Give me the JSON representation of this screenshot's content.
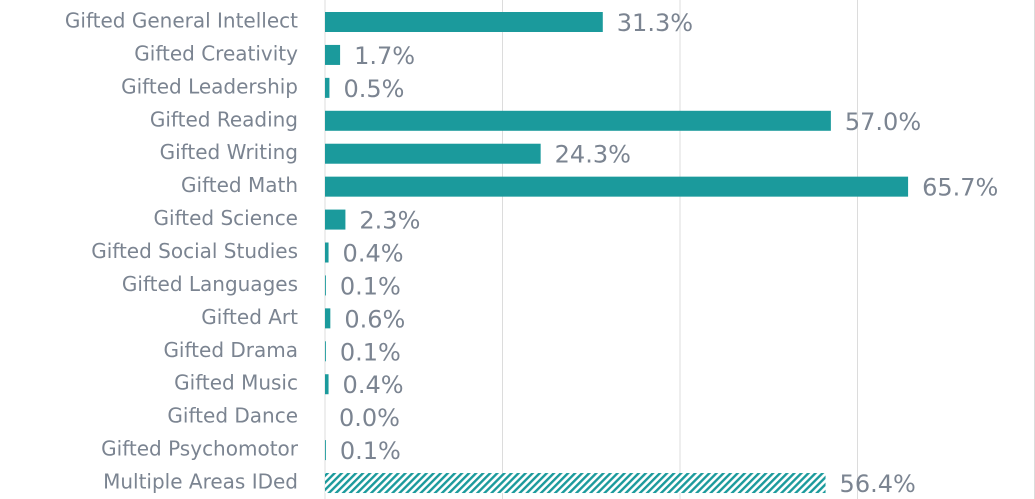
{
  "chart_data": {
    "type": "bar",
    "orientation": "horizontal",
    "categories": [
      "Gifted General Intellect",
      "Gifted Creativity",
      "Gifted Leadership",
      "Gifted Reading",
      "Gifted Writing",
      "Gifted Math",
      "Gifted Science",
      "Gifted Social Studies",
      "Gifted Languages",
      "Gifted Art",
      "Gifted Drama",
      "Gifted Music",
      "Gifted Dance",
      "Gifted Psychomotor",
      "Multiple Areas IDed"
    ],
    "values": [
      31.3,
      1.7,
      0.5,
      57.0,
      24.3,
      65.7,
      2.3,
      0.4,
      0.1,
      0.6,
      0.1,
      0.4,
      0.0,
      0.1,
      56.4
    ],
    "value_labels": [
      "31.3%",
      "1.7%",
      "0.5%",
      "57.0%",
      "24.3%",
      "65.7%",
      "2.3%",
      "0.4%",
      "0.1%",
      "0.6%",
      "0.1%",
      "0.4%",
      "0.0%",
      "0.1%",
      "56.4%"
    ],
    "color": "#1b9a9c",
    "hatched_index": 14,
    "xlim": [
      0,
      80
    ],
    "xticks": [
      0,
      20,
      40,
      60,
      80
    ],
    "grid": true
  }
}
